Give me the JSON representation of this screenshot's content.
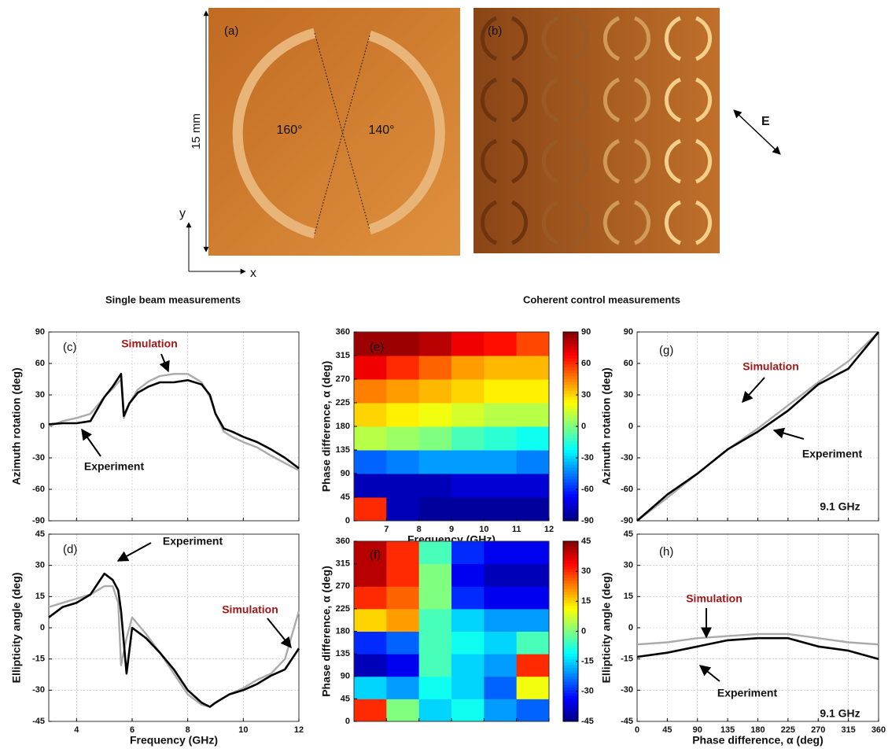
{
  "photos": {
    "a": {
      "label": "(a)",
      "scale_label": "15 mm",
      "left_angle": "160°",
      "right_angle": "140°",
      "y_axis": "y",
      "x_axis": "x"
    },
    "b": {
      "label": "(b)",
      "field_label": "E"
    }
  },
  "section_titles": {
    "single": "Single beam measurements",
    "coherent": "Coherent control measurements"
  },
  "chart_data": [
    {
      "type": "line",
      "panel": "(c)",
      "ylabel": "Azimuth rotation (deg)",
      "grid": true,
      "xlim": [
        3,
        12
      ],
      "xticks": [
        4,
        6,
        8,
        10,
        12
      ],
      "xtick_labels": false,
      "ylim": [
        -90,
        90
      ],
      "yticks": [
        -90,
        -60,
        -30,
        0,
        30,
        60,
        90
      ],
      "x": [
        3,
        3.5,
        4,
        4.5,
        5,
        5.3,
        5.6,
        5.7,
        5.9,
        6.2,
        6.6,
        7,
        7.5,
        8,
        8.5,
        8.8,
        9,
        9.3,
        9.6,
        10,
        10.5,
        11,
        11.5,
        12
      ],
      "series": [
        {
          "name": "Simulation",
          "color": "#aaaaaa",
          "values": [
            0,
            5,
            8,
            12,
            28,
            36,
            45,
            8,
            22,
            35,
            43,
            48,
            50,
            50,
            42,
            28,
            12,
            -5,
            -10,
            -15,
            -20,
            -28,
            -35,
            -42
          ]
        },
        {
          "name": "Experiment",
          "color": "#000000",
          "values": [
            2,
            3,
            3,
            5,
            28,
            38,
            50,
            10,
            22,
            32,
            38,
            42,
            42,
            44,
            40,
            30,
            12,
            -2,
            -5,
            -10,
            -15,
            -22,
            -30,
            -40
          ]
        }
      ],
      "annotations": [
        {
          "text": "Simulation",
          "color": "#a01818"
        },
        {
          "text": "Experiment",
          "color": "#111111"
        }
      ]
    },
    {
      "type": "line",
      "panel": "(d)",
      "ylabel": "Ellipticity angle (deg)",
      "xlabel": "Frequency (GHz)",
      "grid": true,
      "xlim": [
        3,
        12
      ],
      "xticks": [
        4,
        6,
        8,
        10,
        12
      ],
      "ylim": [
        -45,
        45
      ],
      "yticks": [
        -45,
        -30,
        -15,
        0,
        15,
        30,
        45
      ],
      "x": [
        3,
        3.5,
        4,
        4.5,
        5,
        5.3,
        5.5,
        5.6,
        5.8,
        6,
        6.5,
        7,
        7.5,
        8,
        8.5,
        8.8,
        9,
        9.5,
        10,
        10.5,
        11,
        11.5,
        12
      ],
      "series": [
        {
          "name": "Simulation",
          "color": "#aaaaaa",
          "values": [
            10,
            12,
            14,
            16,
            20,
            20,
            12,
            -18,
            -5,
            5,
            -3,
            -12,
            -22,
            -32,
            -37,
            -38,
            -36,
            -32,
            -29,
            -25,
            -22,
            -15,
            8
          ]
        },
        {
          "name": "Experiment",
          "color": "#000000",
          "values": [
            5,
            10,
            12,
            16,
            26,
            23,
            18,
            8,
            -22,
            0,
            -5,
            -12,
            -20,
            -30,
            -36,
            -38,
            -36,
            -32,
            -30,
            -27,
            -23,
            -20,
            -10
          ]
        }
      ],
      "annotations": [
        {
          "text": "Experiment",
          "color": "#111111"
        },
        {
          "text": "Simulation",
          "color": "#a01818"
        }
      ]
    },
    {
      "type": "heatmap",
      "panel": "(e)",
      "ylabel": "Phase difference, α (deg)",
      "xlabel": "Frequency (GHz)",
      "colormap": "jet",
      "xlim": [
        6,
        12
      ],
      "xticks": [
        7,
        8,
        9,
        10,
        11,
        12
      ],
      "ylim": [
        0,
        360
      ],
      "yticks": [
        0,
        45,
        90,
        135,
        180,
        225,
        270,
        315,
        360
      ],
      "clim": [
        -90,
        90
      ],
      "cticks": [
        -90,
        -60,
        -30,
        0,
        30,
        60,
        90
      ],
      "x": [
        6.5,
        7.5,
        8.5,
        9.5,
        10.5,
        11.5
      ],
      "y": [
        22.5,
        67.5,
        112.5,
        157.5,
        202.5,
        247.5,
        292.5,
        337.5
      ],
      "z": [
        [
          60,
          -80,
          -85,
          -85,
          -85,
          -85
        ],
        [
          -80,
          -80,
          -80,
          -75,
          -75,
          -75
        ],
        [
          -50,
          -45,
          -40,
          -40,
          -40,
          -45
        ],
        [
          10,
          5,
          0,
          -10,
          -15,
          -20
        ],
        [
          30,
          25,
          20,
          15,
          10,
          10
        ],
        [
          45,
          40,
          35,
          30,
          25,
          25
        ],
        [
          70,
          60,
          50,
          40,
          35,
          35
        ],
        [
          85,
          85,
          80,
          70,
          65,
          55
        ]
      ]
    },
    {
      "type": "heatmap",
      "panel": "(f)",
      "ylabel": "Phase difference, α (deg)",
      "colormap": "jet",
      "xlim": [
        6,
        12
      ],
      "xticks": [
        7,
        8,
        9,
        10,
        11,
        12
      ],
      "xtick_labels": false,
      "ylim": [
        0,
        360
      ],
      "yticks": [
        0,
        45,
        90,
        135,
        180,
        225,
        270,
        315,
        360
      ],
      "clim": [
        -45,
        45
      ],
      "cticks": [
        -45,
        -30,
        -15,
        0,
        15,
        30,
        45
      ],
      "x": [
        6.5,
        7.5,
        8.5,
        9.5,
        10.5,
        11.5
      ],
      "y": [
        22.5,
        67.5,
        112.5,
        157.5,
        202.5,
        247.5,
        292.5,
        337.5
      ],
      "z": [
        [
          30,
          0,
          -15,
          -10,
          -20,
          -25
        ],
        [
          -15,
          -20,
          -10,
          -15,
          -25,
          10
        ],
        [
          -40,
          -35,
          -5,
          -15,
          -20,
          30
        ],
        [
          -30,
          -25,
          -5,
          -10,
          -15,
          -5
        ],
        [
          15,
          20,
          -5,
          -15,
          -20,
          -20
        ],
        [
          30,
          25,
          0,
          -30,
          -35,
          -35
        ],
        [
          40,
          30,
          0,
          -35,
          -40,
          -40
        ],
        [
          40,
          30,
          -5,
          -30,
          -35,
          -35
        ]
      ]
    },
    {
      "type": "line",
      "panel": "(g)",
      "ylabel": "Azimuth rotation (deg)",
      "grid": true,
      "xlim": [
        0,
        360
      ],
      "xticks": [
        0,
        45,
        90,
        135,
        180,
        225,
        270,
        315,
        360
      ],
      "xtick_labels": false,
      "ylim": [
        -90,
        90
      ],
      "yticks": [
        -90,
        -60,
        -30,
        0,
        30,
        60,
        90
      ],
      "x": [
        0,
        45,
        90,
        135,
        180,
        225,
        270,
        315,
        360
      ],
      "series": [
        {
          "name": "Simulation",
          "color": "#aaaaaa",
          "values": [
            -90,
            -68,
            -45,
            -22,
            -2,
            20,
            42,
            62,
            90
          ]
        },
        {
          "name": "Experiment",
          "color": "#000000",
          "values": [
            -90,
            -65,
            -45,
            -22,
            -5,
            15,
            40,
            55,
            90
          ]
        }
      ],
      "annotations": [
        {
          "text": "Simulation",
          "color": "#a01818"
        },
        {
          "text": "Experiment",
          "color": "#111111"
        },
        {
          "text": "9.1 GHz",
          "color": "#111111"
        }
      ]
    },
    {
      "type": "line",
      "panel": "(h)",
      "ylabel": "Ellipticity angle (deg)",
      "xlabel": "Phase difference, α (deg)",
      "grid": true,
      "xlim": [
        0,
        360
      ],
      "xticks": [
        0,
        45,
        90,
        135,
        180,
        225,
        270,
        315,
        360
      ],
      "ylim": [
        -45,
        45
      ],
      "yticks": [
        -45,
        -30,
        -15,
        0,
        15,
        30,
        45
      ],
      "x": [
        0,
        45,
        90,
        135,
        180,
        225,
        270,
        315,
        360
      ],
      "series": [
        {
          "name": "Simulation",
          "color": "#aaaaaa",
          "values": [
            -8,
            -7,
            -5,
            -4,
            -3,
            -3,
            -5,
            -7,
            -8
          ]
        },
        {
          "name": "Experiment",
          "color": "#000000",
          "values": [
            -14,
            -12,
            -9,
            -6,
            -5,
            -5,
            -9,
            -11,
            -15
          ]
        }
      ],
      "annotations": [
        {
          "text": "Simulation",
          "color": "#a01818"
        },
        {
          "text": "Experiment",
          "color": "#111111"
        },
        {
          "text": "9.1 GHz",
          "color": "#111111"
        }
      ]
    }
  ]
}
